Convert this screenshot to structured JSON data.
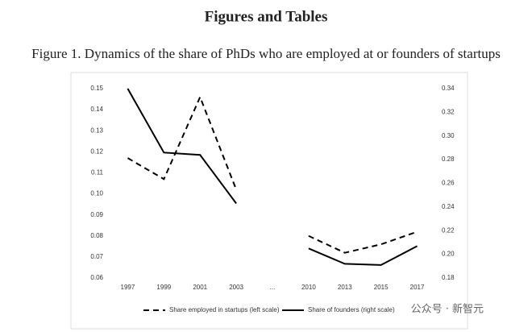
{
  "heading": "Figures and Tables",
  "chart_data": {
    "type": "line",
    "title": "Figure 1. Dynamics of the share of PhDs who are employed at or founders of startups",
    "categories": [
      "1997",
      "1999",
      "2001",
      "2003",
      "...",
      "2010",
      "2013",
      "2015",
      "2017"
    ],
    "series": [
      {
        "name": "Share employed in startups (left scale)",
        "color": "#000000",
        "dash": "dashed",
        "values": [
          0.117,
          0.107,
          0.146,
          0.102,
          null,
          0.08,
          0.072,
          0.076,
          0.082
        ]
      },
      {
        "name": "Share of founders (right scale)",
        "color": "#000000",
        "dash": "solid",
        "axis": "y2",
        "values": [
          0.34,
          0.286,
          0.284,
          0.243,
          null,
          0.205,
          0.192,
          0.191,
          0.207
        ]
      }
    ],
    "ylim": [
      0.06,
      0.15
    ],
    "yticks": [
      0.06,
      0.07,
      0.08,
      0.09,
      {
        "value": 0.1,
        "label": "0.10"
      },
      0.11,
      0.12,
      0.13,
      0.14,
      0.15
    ],
    "y2lim": [
      0.18,
      0.34
    ],
    "y2ticks": [
      0.18,
      {
        "value": 0.2,
        "label": "0.20"
      },
      0.22,
      0.24,
      0.26,
      0.28,
      {
        "value": 0.3,
        "label": "0.30"
      },
      0.32,
      0.34
    ],
    "grid": false,
    "legend": "bottom"
  },
  "watermark": "公众号 · 新智元"
}
